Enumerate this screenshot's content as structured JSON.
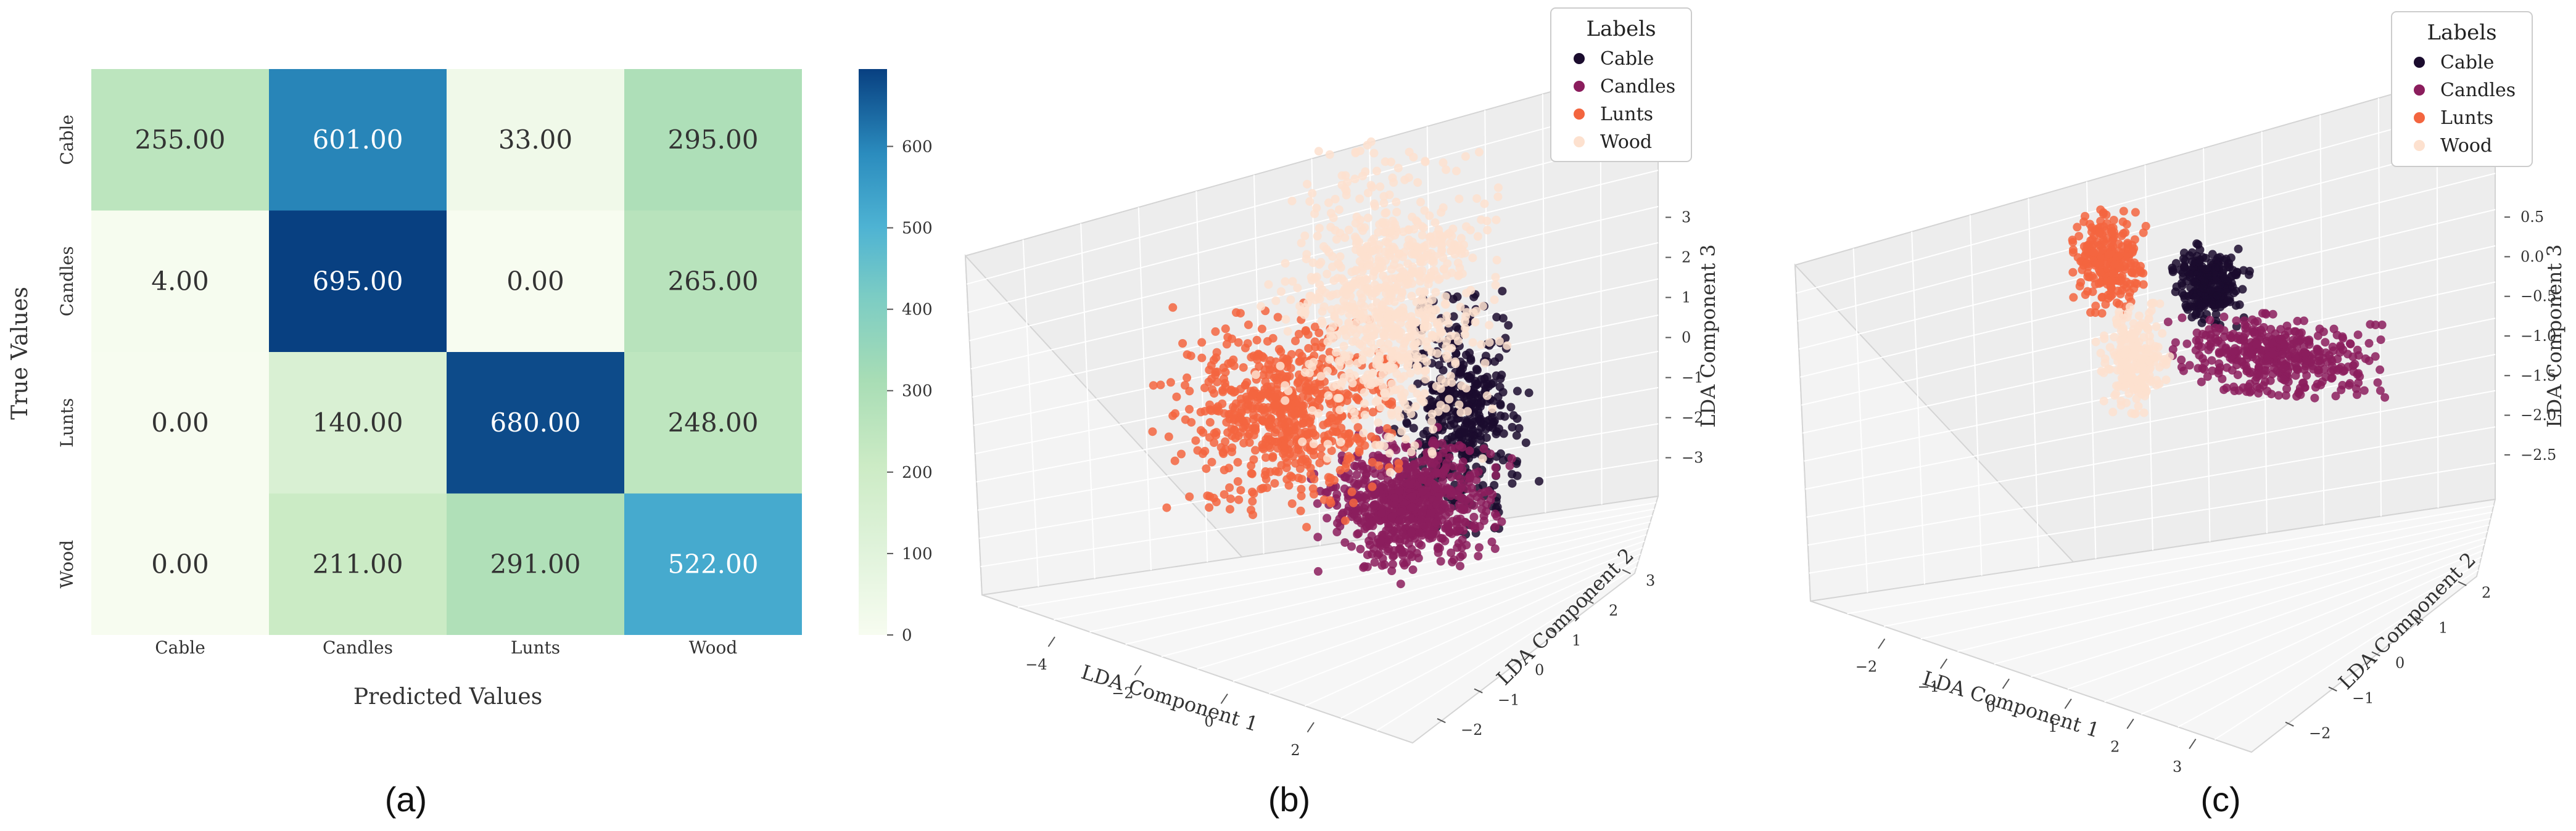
{
  "chart_data": [
    {
      "panel_label": "(a)",
      "type": "heatmap",
      "title": "",
      "xlabel": "Predicted Values",
      "ylabel": "True Values",
      "x_categories": [
        "Cable",
        "Candles",
        "Lunts",
        "Wood"
      ],
      "y_categories": [
        "Cable",
        "Candles",
        "Lunts",
        "Wood"
      ],
      "values": [
        [
          255.0,
          601.0,
          33.0,
          295.0
        ],
        [
          4.0,
          695.0,
          0.0,
          265.0
        ],
        [
          0.0,
          140.0,
          680.0,
          248.0
        ],
        [
          0.0,
          211.0,
          291.0,
          522.0
        ]
      ],
      "cell_labels": [
        [
          "255.00",
          "601.00",
          "33.00",
          "295.00"
        ],
        [
          "4.00",
          "695.00",
          "0.00",
          "265.00"
        ],
        [
          "0.00",
          "140.00",
          "680.00",
          "248.00"
        ],
        [
          "0.00",
          "211.00",
          "291.00",
          "522.00"
        ]
      ],
      "colormap": "GnBu",
      "colorbar": {
        "range": [
          0,
          695
        ],
        "ticks": [
          0,
          100,
          200,
          300,
          400,
          500,
          600
        ]
      }
    },
    {
      "panel_label": "(b)",
      "type": "scatter",
      "projection": "3d",
      "xlabel": "LDA Component 1",
      "ylabel": "LDA Component 2",
      "zlabel": "LDA Component 3",
      "xticks": [
        "−4",
        "−2",
        "0",
        "2"
      ],
      "yticks": [
        "−2",
        "−1",
        "0",
        "1",
        "2",
        "3"
      ],
      "zticks": [
        "−3",
        "−2",
        "−1",
        "0",
        "1",
        "2",
        "3"
      ],
      "legend": {
        "title": "Labels",
        "location": "top-right",
        "entries": [
          "Cable",
          "Candles",
          "Lunts",
          "Wood"
        ]
      },
      "series": [
        {
          "name": "Cable",
          "color": "#1b0c2e",
          "points": 420,
          "x_range": [
            0.5,
            3.0
          ],
          "y_range": [
            -1.0,
            1.5
          ],
          "z_range": [
            -2.5,
            1.0
          ]
        },
        {
          "name": "Candles",
          "color": "#8b1d5d",
          "points": 700,
          "x_range": [
            -1.0,
            3.0
          ],
          "y_range": [
            -2.0,
            0.5
          ],
          "z_range": [
            -3.0,
            -1.0
          ]
        },
        {
          "name": "Lunts",
          "color": "#f3653f",
          "points": 650,
          "x_range": [
            -5.0,
            0.0
          ],
          "y_range": [
            -1.0,
            2.0
          ],
          "z_range": [
            -2.5,
            0.5
          ]
        },
        {
          "name": "Wood",
          "color": "#fde1cf",
          "points": 800,
          "x_range": [
            -2.5,
            2.0
          ],
          "y_range": [
            -1.0,
            3.0
          ],
          "z_range": [
            -1.5,
            3.0
          ]
        }
      ]
    },
    {
      "panel_label": "(c)",
      "type": "scatter",
      "projection": "3d",
      "xlabel": "LDA Component 1",
      "ylabel": "LDA Component 2",
      "zlabel": "LDA Component 3",
      "xticks": [
        "−2",
        "−1",
        "0",
        "1",
        "2",
        "3"
      ],
      "yticks": [
        "−2",
        "−1",
        "0",
        "1",
        "2"
      ],
      "zticks": [
        "0.5",
        "0.0",
        "−0.5",
        "−1.0",
        "−1.5",
        "−2.0",
        "−2.5"
      ],
      "legend": {
        "title": "Labels",
        "location": "top-right",
        "entries": [
          "Cable",
          "Candles",
          "Lunts",
          "Wood"
        ]
      },
      "series": [
        {
          "name": "Cable",
          "color": "#1b0c2e",
          "points": 280,
          "x_range": [
            0.0,
            1.0
          ],
          "y_range": [
            -0.5,
            1.0
          ],
          "z_range": [
            -1.0,
            0.0
          ]
        },
        {
          "name": "Candles",
          "color": "#8b1d5d",
          "points": 420,
          "x_range": [
            0.0,
            3.0
          ],
          "y_range": [
            -1.0,
            1.0
          ],
          "z_range": [
            -1.8,
            -0.8
          ]
        },
        {
          "name": "Lunts",
          "color": "#f3653f",
          "points": 260,
          "x_range": [
            -1.5,
            -0.5
          ],
          "y_range": [
            0.0,
            1.0
          ],
          "z_range": [
            -1.0,
            0.3
          ]
        },
        {
          "name": "Wood",
          "color": "#fde1cf",
          "points": 240,
          "x_range": [
            -1.0,
            0.0
          ],
          "y_range": [
            -1.0,
            0.0
          ],
          "z_range": [
            -2.2,
            -0.8
          ]
        }
      ]
    }
  ]
}
